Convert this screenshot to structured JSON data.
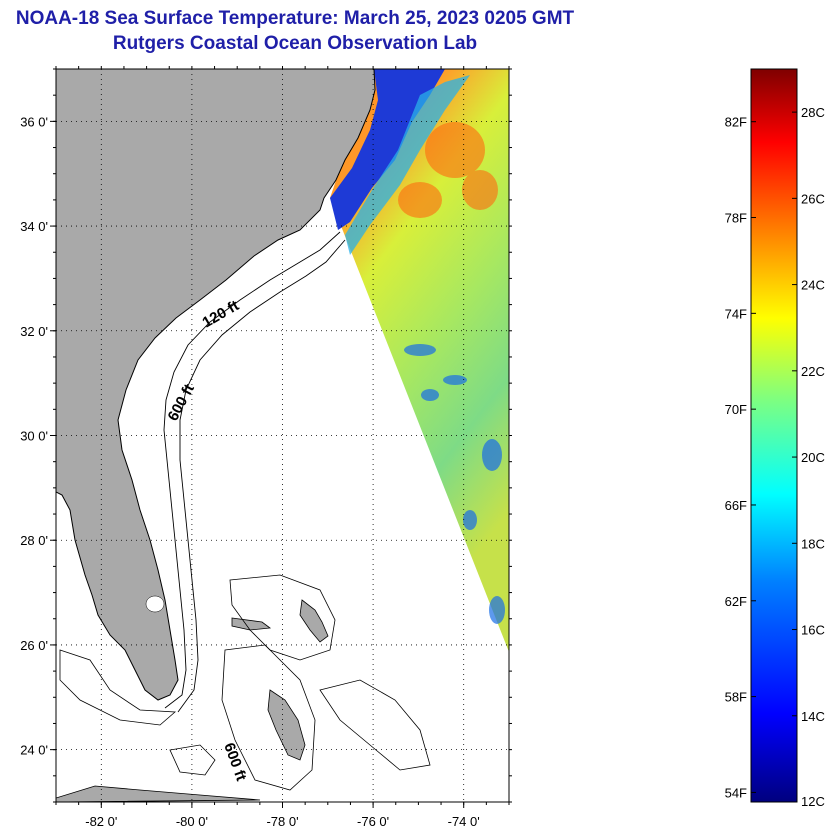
{
  "header": {
    "title": "NOAA-18 Sea Surface Temperature:  March 25, 2023 0205 GMT",
    "subtitle": "Rutgers Coastal Ocean Observation Lab"
  },
  "map": {
    "lon_range": [
      -83,
      -73
    ],
    "lat_range": [
      23,
      37
    ],
    "lon_ticks": [
      {
        "value": -82,
        "label": "-82 0'"
      },
      {
        "value": -80,
        "label": "-80 0'"
      },
      {
        "value": -78,
        "label": "-78 0'"
      },
      {
        "value": -76,
        "label": "-76 0'"
      },
      {
        "value": -74,
        "label": "-74 0'"
      }
    ],
    "lat_ticks": [
      {
        "value": 36,
        "label": "36 0'"
      },
      {
        "value": 34,
        "label": "34 0'"
      },
      {
        "value": 32,
        "label": "32 0'"
      },
      {
        "value": 30,
        "label": "30 0'"
      },
      {
        "value": 28,
        "label": "28 0'"
      },
      {
        "value": 26,
        "label": "26 0'"
      },
      {
        "value": 24,
        "label": "24 0'"
      }
    ],
    "grid": true,
    "land_color": "#a9a9a9",
    "contour_labels": [
      "120 ft",
      "600 ft",
      "600 ft"
    ]
  },
  "colorbar": {
    "range_c": [
      12,
      29
    ],
    "fahrenheit_labels": [
      "82F",
      "78F",
      "74F",
      "70F",
      "66F",
      "62F",
      "58F",
      "54F"
    ],
    "celsius_labels": [
      "28C",
      "26C",
      "24C",
      "22C",
      "20C",
      "18C",
      "16C",
      "14C",
      "12C"
    ],
    "colors": [
      "#00007f",
      "#0000ff",
      "#007fff",
      "#00ffff",
      "#7fff7f",
      "#ffff00",
      "#ff7f00",
      "#ff0000",
      "#7f0000"
    ]
  }
}
